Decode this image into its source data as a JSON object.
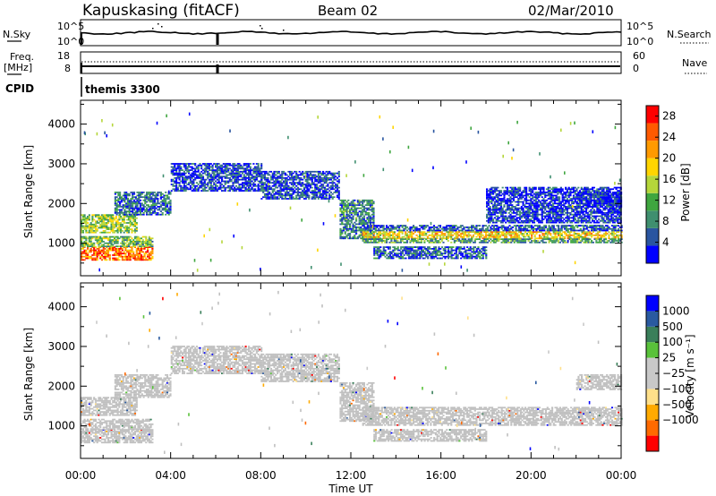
{
  "header": {
    "station": "Kapuskasing (fitACF)",
    "beam": "Beam 02",
    "date": "02/Mar/2010"
  },
  "params": {
    "nsky_label": "N.Sky",
    "nsearch_label": "N.Search",
    "freq_label_line1": "Freq.",
    "freq_label_line2": "[MHz]",
    "nave_label": "Nave",
    "cpid_label": "CPID",
    "cpid_value": "themis 3300",
    "noise_left_ticks": [
      "10^5",
      "10^0"
    ],
    "noise_right_ticks": [
      "10^5",
      "10^0"
    ],
    "freq_ticks": [
      "18",
      "8"
    ],
    "nave_ticks": [
      "60",
      "0"
    ]
  },
  "colors": {
    "power_scale": [
      "#0000ff",
      "#2a55a0",
      "#3f8f6f",
      "#3fa63f",
      "#b5d63a",
      "#ffd500",
      "#ff9a00",
      "#ff5a00",
      "#ff0000"
    ],
    "velocity_scale": [
      "#ff0000",
      "#ff6a00",
      "#ffaa00",
      "#ffe08a",
      "#c8c8c8",
      "#c8c8c8",
      "#59c23a",
      "#3a7f5a",
      "#2a5aa0",
      "#0000ff"
    ],
    "ground_scatter": "#c0c0c0"
  },
  "chart_data": [
    {
      "type": "heatmap",
      "panel": "power",
      "ylabel": "Slant Range [km]",
      "xlabel": "Time UT",
      "xlim": [
        "00:00",
        "24:00"
      ],
      "ylim": [
        180,
        4600
      ],
      "x_tick_labels": [
        "00:00",
        "04:00",
        "08:00",
        "12:00",
        "16:00",
        "20:00",
        "00:00"
      ],
      "y_tick_values": [
        1000,
        2000,
        3000,
        4000
      ],
      "y_tick_labels": [
        "1000",
        "2000",
        "3000",
        "4000"
      ],
      "colorbar": {
        "label": "Power [dB]",
        "ticks": [
          "4",
          "8",
          "12",
          "16",
          "20",
          "24",
          "28"
        ],
        "range": [
          0,
          30
        ]
      },
      "bands": [
        {
          "t0": 0.0,
          "t1": 3.2,
          "r0": 560,
          "r1": 900,
          "value": 24
        },
        {
          "t0": 0.0,
          "t1": 3.2,
          "r0": 900,
          "r1": 1150,
          "value": 12
        },
        {
          "t0": 0.0,
          "t1": 2.5,
          "r0": 1250,
          "r1": 1700,
          "value": 14
        },
        {
          "t0": 1.5,
          "t1": 4.0,
          "r0": 1700,
          "r1": 2300,
          "value": 6
        },
        {
          "t0": 4.0,
          "t1": 8.0,
          "r0": 2300,
          "r1": 3000,
          "value": 4
        },
        {
          "t0": 8.0,
          "t1": 11.5,
          "r0": 2100,
          "r1": 2800,
          "value": 4
        },
        {
          "t0": 11.5,
          "t1": 13.0,
          "r0": 1100,
          "r1": 2100,
          "value": 8
        },
        {
          "t0": 12.5,
          "t1": 24.0,
          "r0": 1100,
          "r1": 1300,
          "value": 18
        },
        {
          "t0": 12.5,
          "t1": 24.0,
          "r0": 1000,
          "r1": 1100,
          "value": 10
        },
        {
          "t0": 12.5,
          "t1": 24.0,
          "r0": 1300,
          "r1": 1450,
          "value": 5
        },
        {
          "t0": 13.0,
          "t1": 18.0,
          "r0": 600,
          "r1": 900,
          "value": 5
        },
        {
          "t0": 18.0,
          "t1": 24.0,
          "r0": 1500,
          "r1": 2400,
          "value": 3
        },
        {
          "t0": 22.0,
          "t1": 24.0,
          "r0": 1900,
          "r1": 2300,
          "value": 2
        }
      ]
    },
    {
      "type": "heatmap",
      "panel": "velocity",
      "ylabel": "Slant Range [km]",
      "xlabel": "Time UT",
      "xlim": [
        "00:00",
        "24:00"
      ],
      "ylim": [
        180,
        4600
      ],
      "x_tick_labels": [
        "00:00",
        "04:00",
        "08:00",
        "12:00",
        "16:00",
        "20:00",
        "00:00"
      ],
      "y_tick_values": [
        1000,
        2000,
        3000,
        4000
      ],
      "y_tick_labels": [
        "1000",
        "2000",
        "3000",
        "4000"
      ],
      "colorbar": {
        "label": "Velocity [m s⁻¹]",
        "ticks": [
          "1000",
          "500",
          "100",
          "25",
          "−25",
          "−100",
          "−500",
          "−1000"
        ]
      },
      "bands": [
        {
          "t0": 0.0,
          "t1": 3.2,
          "r0": 560,
          "r1": 900,
          "value": 0
        },
        {
          "t0": 0.0,
          "t1": 3.2,
          "r0": 900,
          "r1": 1150,
          "value": 0
        },
        {
          "t0": 0.0,
          "t1": 2.5,
          "r0": 1250,
          "r1": 1700,
          "value": 0
        },
        {
          "t0": 1.5,
          "t1": 4.0,
          "r0": 1700,
          "r1": 2300,
          "value": 0
        },
        {
          "t0": 4.0,
          "t1": 8.0,
          "r0": 2300,
          "r1": 3000,
          "value": 0
        },
        {
          "t0": 8.0,
          "t1": 11.5,
          "r0": 2100,
          "r1": 2800,
          "value": 0
        },
        {
          "t0": 11.5,
          "t1": 13.0,
          "r0": 1100,
          "r1": 2100,
          "value": 0
        },
        {
          "t0": 12.5,
          "t1": 24.0,
          "r0": 1000,
          "r1": 1450,
          "value": 0
        },
        {
          "t0": 13.0,
          "t1": 18.0,
          "r0": 600,
          "r1": 900,
          "value": 0
        },
        {
          "t0": 22.0,
          "t1": 24.0,
          "r0": 1900,
          "r1": 2300,
          "value": 0
        }
      ]
    }
  ]
}
